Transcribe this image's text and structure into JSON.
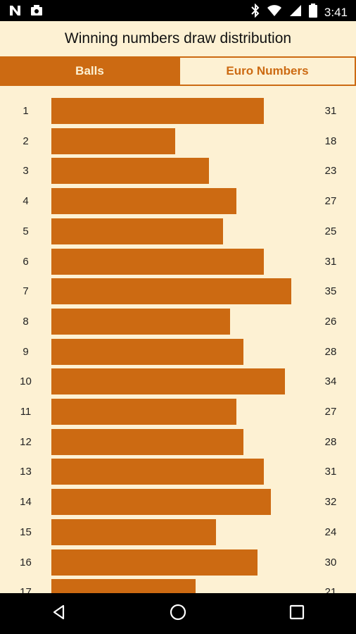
{
  "status_bar": {
    "time": "3:41",
    "icons": [
      "n-notification-icon",
      "photo-notification-icon",
      "bluetooth-icon",
      "wifi-icon",
      "signal-icon",
      "battery-icon"
    ]
  },
  "header": {
    "title": "Winning numbers draw distribution"
  },
  "tabs": [
    {
      "label": "Balls",
      "selected": true
    },
    {
      "label": "Euro Numbers",
      "selected": false
    }
  ],
  "colors": {
    "accent": "#cc6a12",
    "background": "#fdf1d3"
  },
  "chart_data": {
    "type": "bar",
    "orientation": "horizontal",
    "categories": [
      "1",
      "2",
      "3",
      "4",
      "5",
      "6",
      "7",
      "8",
      "9",
      "10",
      "11",
      "12",
      "13",
      "14",
      "15",
      "16",
      "17"
    ],
    "values": [
      31,
      18,
      23,
      27,
      25,
      31,
      35,
      26,
      28,
      34,
      27,
      28,
      31,
      32,
      24,
      30,
      21
    ]
  },
  "nav_bar": {
    "buttons": [
      "back-icon",
      "home-icon",
      "recents-icon"
    ]
  }
}
